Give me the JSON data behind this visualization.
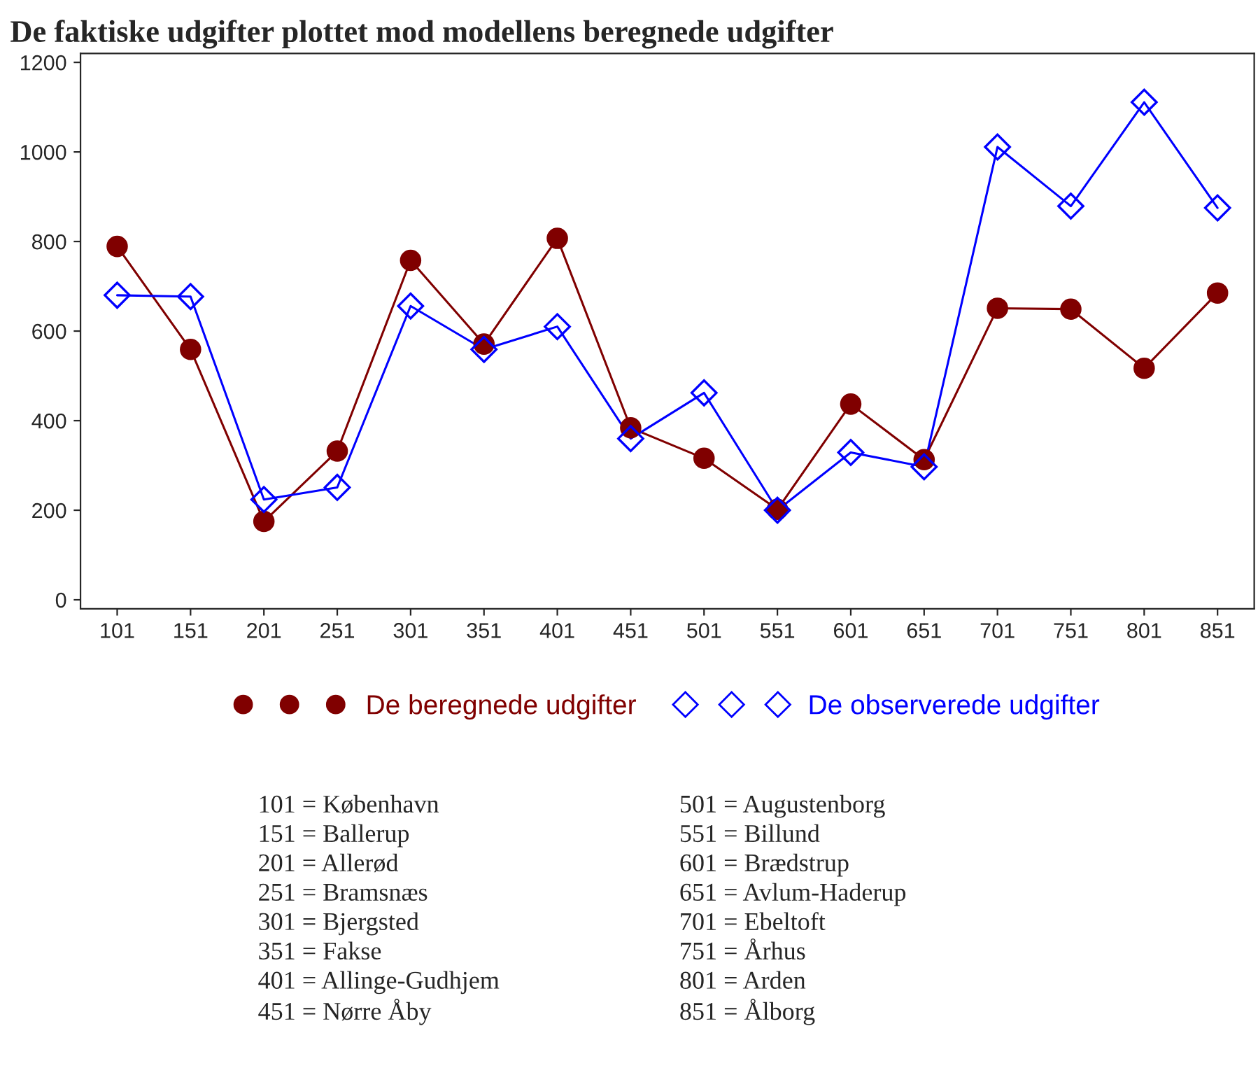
{
  "chart_data": {
    "type": "line",
    "title": "De faktiske udgifter plottet mod modellens beregnede udgifter",
    "categories": [
      "101",
      "151",
      "201",
      "251",
      "301",
      "351",
      "401",
      "451",
      "501",
      "551",
      "601",
      "651",
      "701",
      "751",
      "801",
      "851"
    ],
    "series": [
      {
        "name": "De beregnede udgifter",
        "color": "#800000",
        "marker": "circle",
        "values": [
          789,
          559,
          175,
          332,
          758,
          571,
          807,
          384,
          316,
          202,
          437,
          313,
          651,
          649,
          517,
          685
        ]
      },
      {
        "name": "De observerede udgifter",
        "color": "#0000ff",
        "marker": "diamond",
        "values": [
          680,
          677,
          224,
          251,
          656,
          559,
          610,
          360,
          462,
          200,
          329,
          297,
          1011,
          879,
          1111,
          875
        ]
      }
    ],
    "ylim": [
      -20,
      1220
    ],
    "yticks": [
      0,
      200,
      400,
      600,
      800,
      1000,
      1200
    ],
    "grid": false,
    "legend": "bottom",
    "line_style": "solid",
    "annotations": [
      "101 = København",
      "151 = Ballerup",
      "201 = Allerød",
      "251 = Bramsnæs",
      "301 = Bjergsted",
      "351 = Fakse",
      "401 = Allinge-Gudhjem",
      "451 = Nørre Åby",
      "501 = Augustenborg",
      "551 = Billund",
      "601 = Brædstrup",
      "651 = Avlum-Haderup",
      "701 = Ebeltoft",
      "751 = Århus",
      "801 = Arden",
      "851 = Ålborg"
    ]
  }
}
